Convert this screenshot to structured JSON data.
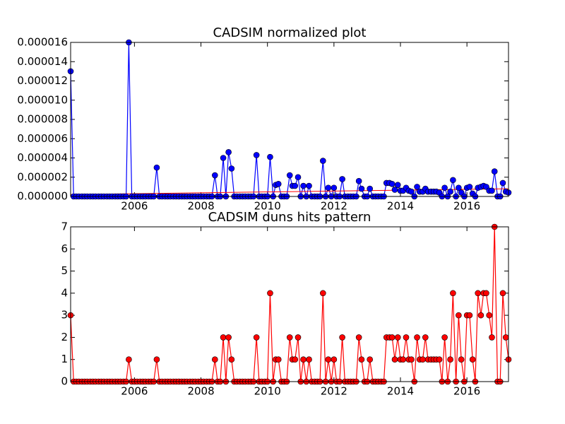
{
  "chart_data": [
    {
      "type": "line",
      "title": "CADSIM normalized plot",
      "color": "#0000ff",
      "marker_edge": "#000000",
      "x": [
        2004.08,
        2004.17,
        2004.25,
        2004.33,
        2004.42,
        2004.5,
        2004.58,
        2004.67,
        2004.75,
        2004.83,
        2004.92,
        2005,
        2005.08,
        2005.17,
        2005.25,
        2005.33,
        2005.42,
        2005.5,
        2005.58,
        2005.67,
        2005.75,
        2005.83,
        2005.92,
        2006,
        2006.08,
        2006.17,
        2006.25,
        2006.33,
        2006.42,
        2006.5,
        2006.58,
        2006.67,
        2006.75,
        2006.83,
        2006.92,
        2007,
        2007.08,
        2007.17,
        2007.25,
        2007.33,
        2007.42,
        2007.5,
        2007.58,
        2007.67,
        2007.75,
        2007.83,
        2007.92,
        2008,
        2008.08,
        2008.17,
        2008.25,
        2008.33,
        2008.42,
        2008.5,
        2008.58,
        2008.67,
        2008.75,
        2008.83,
        2008.92,
        2009,
        2009.08,
        2009.17,
        2009.25,
        2009.33,
        2009.42,
        2009.5,
        2009.58,
        2009.67,
        2009.75,
        2009.83,
        2009.92,
        2010,
        2010.08,
        2010.17,
        2010.25,
        2010.33,
        2010.42,
        2010.5,
        2010.58,
        2010.67,
        2010.75,
        2010.83,
        2010.92,
        2011,
        2011.08,
        2011.17,
        2011.25,
        2011.33,
        2011.42,
        2011.5,
        2011.58,
        2011.67,
        2011.75,
        2011.83,
        2011.92,
        2012,
        2012.08,
        2012.17,
        2012.25,
        2012.33,
        2012.42,
        2012.5,
        2012.58,
        2012.67,
        2012.75,
        2012.83,
        2012.92,
        2013,
        2013.08,
        2013.17,
        2013.25,
        2013.33,
        2013.42,
        2013.5,
        2013.58,
        2013.67,
        2013.75,
        2013.83,
        2013.92,
        2014,
        2014.08,
        2014.17,
        2014.25,
        2014.33,
        2014.42,
        2014.5,
        2014.58,
        2014.67,
        2014.75,
        2014.83,
        2014.92,
        2015,
        2015.08,
        2015.17,
        2015.25,
        2015.33,
        2015.42,
        2015.5,
        2015.58,
        2015.67,
        2015.75,
        2015.83,
        2015.92,
        2016,
        2016.08,
        2016.17,
        2016.25,
        2016.33,
        2016.42,
        2016.5,
        2016.58,
        2016.67,
        2016.75,
        2016.83,
        2016.92,
        2017,
        2017.08,
        2017.17,
        2017.25
      ],
      "values": [
        1.3e-05,
        0,
        0,
        0,
        0,
        0,
        0,
        0,
        0,
        0,
        0,
        0,
        0,
        0,
        0,
        0,
        0,
        0,
        0,
        0,
        0,
        1.6e-05,
        0,
        0,
        0,
        0,
        0,
        0,
        0,
        0,
        0,
        3e-06,
        0,
        0,
        0,
        0,
        0,
        0,
        0,
        0,
        0,
        0,
        0,
        0,
        0,
        0,
        0,
        0,
        0,
        0,
        0,
        0,
        2.2e-06,
        0,
        0,
        4e-06,
        0,
        4.6e-06,
        2.9e-06,
        0,
        0,
        0,
        0,
        0,
        0,
        0,
        0,
        4.3e-06,
        0,
        0,
        0,
        0,
        4.1e-06,
        0,
        1.2e-06,
        1.3e-06,
        0,
        0,
        0,
        2.2e-06,
        1.1e-06,
        1.1e-06,
        2e-06,
        0,
        1.1e-06,
        0,
        1.1e-06,
        0,
        0,
        0,
        0,
        3.7e-06,
        0,
        9e-07,
        0,
        9e-07,
        0,
        0,
        1.8e-06,
        0,
        0,
        0,
        0,
        0,
        1.6e-06,
        8e-07,
        0,
        0,
        8e-07,
        0,
        0,
        0,
        0,
        0,
        1.4e-06,
        1.4e-06,
        1.3e-06,
        7e-07,
        1.2e-06,
        6e-07,
        6e-07,
        9e-07,
        6e-07,
        5e-07,
        0,
        1e-06,
        5e-07,
        5e-07,
        8e-07,
        5e-07,
        5e-07,
        5e-07,
        5e-07,
        4e-07,
        0,
        9e-07,
        0,
        5e-07,
        1.7e-06,
        0,
        9e-07,
        4e-07,
        0,
        9e-07,
        1e-06,
        3e-07,
        0,
        9e-07,
        1e-06,
        1.1e-06,
        1e-06,
        6e-07,
        6e-07,
        2.6e-06,
        0,
        0,
        1.4e-06,
        5e-07,
        4e-07
      ],
      "trend": {
        "color": "#ff0000",
        "x": [
          2004.08,
          2017.25
        ],
        "values": [
          2e-07,
          8e-07
        ]
      },
      "xlim": [
        2004.08,
        2017.25
      ],
      "xticks": [
        2006,
        2008,
        2010,
        2012,
        2014,
        2016
      ],
      "ylim": [
        0,
        1.6e-05
      ],
      "yticks": [
        {
          "value": 0,
          "label": "0.000000"
        },
        {
          "value": 2e-06,
          "label": "0.000002"
        },
        {
          "value": 4e-06,
          "label": "0.000004"
        },
        {
          "value": 6e-06,
          "label": "0.000006"
        },
        {
          "value": 8e-06,
          "label": "0.000008"
        },
        {
          "value": 1e-05,
          "label": "0.000010"
        },
        {
          "value": 1.2e-05,
          "label": "0.000012"
        },
        {
          "value": 1.4e-05,
          "label": "0.000014"
        },
        {
          "value": 1.6e-05,
          "label": "0.000016"
        }
      ]
    },
    {
      "type": "line",
      "title": "CADSIM duns hits pattern",
      "color": "#ff0000",
      "marker_edge": "#000000",
      "x": [
        2004.08,
        2004.17,
        2004.25,
        2004.33,
        2004.42,
        2004.5,
        2004.58,
        2004.67,
        2004.75,
        2004.83,
        2004.92,
        2005,
        2005.08,
        2005.17,
        2005.25,
        2005.33,
        2005.42,
        2005.5,
        2005.58,
        2005.67,
        2005.75,
        2005.83,
        2005.92,
        2006,
        2006.08,
        2006.17,
        2006.25,
        2006.33,
        2006.42,
        2006.5,
        2006.58,
        2006.67,
        2006.75,
        2006.83,
        2006.92,
        2007,
        2007.08,
        2007.17,
        2007.25,
        2007.33,
        2007.42,
        2007.5,
        2007.58,
        2007.67,
        2007.75,
        2007.83,
        2007.92,
        2008,
        2008.08,
        2008.17,
        2008.25,
        2008.33,
        2008.42,
        2008.5,
        2008.58,
        2008.67,
        2008.75,
        2008.83,
        2008.92,
        2009,
        2009.08,
        2009.17,
        2009.25,
        2009.33,
        2009.42,
        2009.5,
        2009.58,
        2009.67,
        2009.75,
        2009.83,
        2009.92,
        2010,
        2010.08,
        2010.17,
        2010.25,
        2010.33,
        2010.42,
        2010.5,
        2010.58,
        2010.67,
        2010.75,
        2010.83,
        2010.92,
        2011,
        2011.08,
        2011.17,
        2011.25,
        2011.33,
        2011.42,
        2011.5,
        2011.58,
        2011.67,
        2011.75,
        2011.83,
        2011.92,
        2012,
        2012.08,
        2012.17,
        2012.25,
        2012.33,
        2012.42,
        2012.5,
        2012.58,
        2012.67,
        2012.75,
        2012.83,
        2012.92,
        2013,
        2013.08,
        2013.17,
        2013.25,
        2013.33,
        2013.42,
        2013.5,
        2013.58,
        2013.67,
        2013.75,
        2013.83,
        2013.92,
        2014,
        2014.08,
        2014.17,
        2014.25,
        2014.33,
        2014.42,
        2014.5,
        2014.58,
        2014.67,
        2014.75,
        2014.83,
        2014.92,
        2015,
        2015.08,
        2015.17,
        2015.25,
        2015.33,
        2015.42,
        2015.5,
        2015.58,
        2015.67,
        2015.75,
        2015.83,
        2015.92,
        2016,
        2016.08,
        2016.17,
        2016.25,
        2016.33,
        2016.42,
        2016.5,
        2016.58,
        2016.67,
        2016.75,
        2016.83,
        2016.92,
        2017,
        2017.08,
        2017.17,
        2017.25
      ],
      "values": [
        3,
        0,
        0,
        0,
        0,
        0,
        0,
        0,
        0,
        0,
        0,
        0,
        0,
        0,
        0,
        0,
        0,
        0,
        0,
        0,
        0,
        1,
        0,
        0,
        0,
        0,
        0,
        0,
        0,
        0,
        0,
        1,
        0,
        0,
        0,
        0,
        0,
        0,
        0,
        0,
        0,
        0,
        0,
        0,
        0,
        0,
        0,
        0,
        0,
        0,
        0,
        0,
        1,
        0,
        0,
        2,
        0,
        2,
        1,
        0,
        0,
        0,
        0,
        0,
        0,
        0,
        0,
        2,
        0,
        0,
        0,
        0,
        4,
        0,
        1,
        1,
        0,
        0,
        0,
        2,
        1,
        1,
        2,
        0,
        1,
        0,
        1,
        0,
        0,
        0,
        0,
        4,
        0,
        1,
        0,
        1,
        0,
        0,
        2,
        0,
        0,
        0,
        0,
        0,
        2,
        1,
        0,
        0,
        1,
        0,
        0,
        0,
        0,
        0,
        2,
        2,
        2,
        1,
        2,
        1,
        1,
        2,
        1,
        1,
        0,
        2,
        1,
        1,
        2,
        1,
        1,
        1,
        1,
        1,
        0,
        2,
        0,
        1,
        4,
        0,
        3,
        1,
        0,
        3,
        3,
        1,
        0,
        4,
        3,
        4,
        4,
        3,
        2,
        7,
        0,
        0,
        4,
        2,
        1
      ],
      "xlim": [
        2004.08,
        2017.25
      ],
      "xticks": [
        2006,
        2008,
        2010,
        2012,
        2014,
        2016
      ],
      "ylim": [
        0,
        7
      ],
      "yticks": [
        0,
        1,
        2,
        3,
        4,
        5,
        6,
        7
      ]
    }
  ]
}
